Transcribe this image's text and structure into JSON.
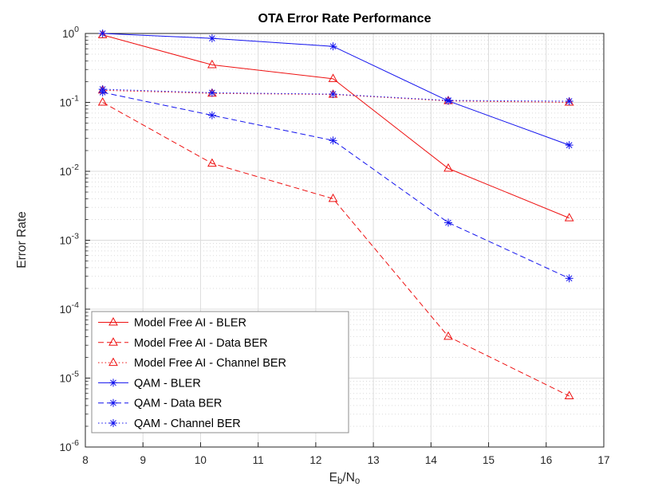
{
  "chart_data": {
    "type": "line",
    "title": "OTA Error Rate Performance",
    "xlabel": "Eb/No",
    "xlabel_parts": {
      "p1": "E",
      "s1": "b",
      "p2": "/N",
      "s2": "o"
    },
    "ylabel": "Error Rate",
    "xlim": [
      8,
      17
    ],
    "ylim": [
      1e-06,
      1
    ],
    "xticks": [
      8,
      9,
      10,
      11,
      12,
      13,
      14,
      15,
      16,
      17
    ],
    "yticks_exp": [
      0,
      -1,
      -2,
      -3,
      -4,
      -5,
      -6
    ],
    "ytick_base": "10",
    "yscale": "log10",
    "grid": "on",
    "minor_grid": "on",
    "legend_position": "lower-left",
    "colors": {
      "model_free_ai": "#ee1111",
      "qam": "#1111ee"
    },
    "x": [
      8.3,
      10.2,
      12.3,
      14.3,
      16.4
    ],
    "series": [
      {
        "name": "Model Free AI - BLER",
        "color": "#ee1111",
        "line": "solid",
        "marker": "triangle",
        "values": [
          0.95,
          0.35,
          0.22,
          0.011,
          0.0021
        ]
      },
      {
        "name": "Model Free AI - Data BER",
        "color": "#ee1111",
        "line": "dashed",
        "marker": "triangle",
        "values": [
          0.1,
          0.013,
          0.004,
          4e-05,
          5.5e-06
        ]
      },
      {
        "name": "Model Free AI - Channel BER",
        "color": "#ee1111",
        "line": "dotted",
        "marker": "triangle",
        "values": [
          0.15,
          0.135,
          0.13,
          0.105,
          0.1
        ]
      },
      {
        "name": "QAM - BLER",
        "color": "#1111ee",
        "line": "solid",
        "marker": "asterisk",
        "values": [
          1.0,
          0.85,
          0.65,
          0.105,
          0.024
        ]
      },
      {
        "name": "QAM - Data BER",
        "color": "#1111ee",
        "line": "dashed",
        "marker": "asterisk",
        "values": [
          0.14,
          0.065,
          0.028,
          0.0018,
          0.00028
        ]
      },
      {
        "name": "QAM - Channel BER",
        "color": "#1111ee",
        "line": "dotted",
        "marker": "asterisk",
        "values": [
          0.155,
          0.138,
          0.132,
          0.107,
          0.104
        ]
      }
    ]
  }
}
